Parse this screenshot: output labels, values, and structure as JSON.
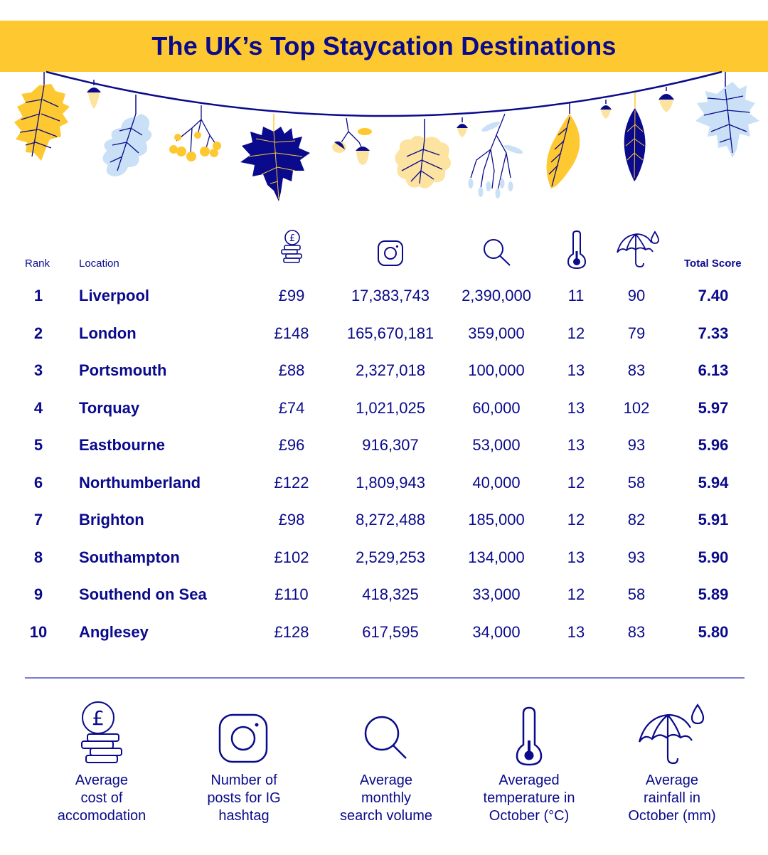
{
  "title": "The UK’s Top Staycation Destinations",
  "colors": {
    "navy": "#0a0a8c",
    "yellow": "#fdc830",
    "light_yellow": "#fde3a0",
    "light_blue": "#c9e0f7",
    "divider": "#7b7bd6"
  },
  "table": {
    "headers": {
      "rank": "Rank",
      "location": "Location",
      "cost_icon": "pound-coins-icon",
      "ig_icon": "instagram-icon",
      "search_icon": "search-icon",
      "temp_icon": "thermometer-icon",
      "rain_icon": "umbrella-rain-icon",
      "total_score": "Total Score"
    },
    "rows": [
      {
        "rank": "1",
        "location": "Liverpool",
        "cost": "£99",
        "ig_posts": "17,383,743",
        "search_volume": "2,390,000",
        "temp": "11",
        "rainfall": "90",
        "score": "7.40"
      },
      {
        "rank": "2",
        "location": "London",
        "cost": "£148",
        "ig_posts": "165,670,181",
        "search_volume": "359,000",
        "temp": "12",
        "rainfall": "79",
        "score": "7.33"
      },
      {
        "rank": "3",
        "location": "Portsmouth",
        "cost": "£88",
        "ig_posts": "2,327,018",
        "search_volume": "100,000",
        "temp": "13",
        "rainfall": "83",
        "score": "6.13"
      },
      {
        "rank": "4",
        "location": "Torquay",
        "cost": "£74",
        "ig_posts": "1,021,025",
        "search_volume": "60,000",
        "temp": "13",
        "rainfall": "102",
        "score": "5.97"
      },
      {
        "rank": "5",
        "location": "Eastbourne",
        "cost": "£96",
        "ig_posts": "916,307",
        "search_volume": "53,000",
        "temp": "13",
        "rainfall": "93",
        "score": "5.96"
      },
      {
        "rank": "6",
        "location": "Northumberland",
        "cost": "£122",
        "ig_posts": "1,809,943",
        "search_volume": "40,000",
        "temp": "12",
        "rainfall": "58",
        "score": "5.94"
      },
      {
        "rank": "7",
        "location": "Brighton",
        "cost": "£98",
        "ig_posts": "8,272,488",
        "search_volume": "185,000",
        "temp": "12",
        "rainfall": "82",
        "score": "5.91"
      },
      {
        "rank": "8",
        "location": "Southampton",
        "cost": "£102",
        "ig_posts": "2,529,253",
        "search_volume": "134,000",
        "temp": "13",
        "rainfall": "93",
        "score": "5.90"
      },
      {
        "rank": "9",
        "location": "Southend on Sea",
        "cost": "£110",
        "ig_posts": "418,325",
        "search_volume": "33,000",
        "temp": "12",
        "rainfall": "58",
        "score": "5.89"
      },
      {
        "rank": "10",
        "location": "Anglesey",
        "cost": "£128",
        "ig_posts": "617,595",
        "search_volume": "34,000",
        "temp": "13",
        "rainfall": "83",
        "score": "5.80"
      }
    ]
  },
  "legend": [
    {
      "icon": "pound-coins-icon",
      "lines": [
        "Average",
        "cost of",
        "accomodation"
      ]
    },
    {
      "icon": "instagram-icon",
      "lines": [
        "Number of",
        "posts for IG",
        "hashtag"
      ]
    },
    {
      "icon": "search-icon",
      "lines": [
        "Average",
        "monthly",
        "search volume"
      ]
    },
    {
      "icon": "thermometer-icon",
      "lines": [
        "Averaged",
        "temperature in",
        "October (°C)"
      ]
    },
    {
      "icon": "umbrella-rain-icon",
      "lines": [
        "Average",
        "rainfall in",
        "October (mm)"
      ]
    }
  ],
  "chart_data": {
    "type": "table",
    "title": "The UK’s Top Staycation Destinations",
    "columns": [
      "Rank",
      "Location",
      "Average cost of accomodation",
      "Number of posts for IG hashtag",
      "Average monthly search volume",
      "Averaged temperature in October (°C)",
      "Average rainfall in October (mm)",
      "Total Score"
    ],
    "rows": [
      [
        1,
        "Liverpool",
        99,
        17383743,
        2390000,
        11,
        90,
        7.4
      ],
      [
        2,
        "London",
        148,
        165670181,
        359000,
        12,
        79,
        7.33
      ],
      [
        3,
        "Portsmouth",
        88,
        2327018,
        100000,
        13,
        83,
        6.13
      ],
      [
        4,
        "Torquay",
        74,
        1021025,
        60000,
        13,
        102,
        5.97
      ],
      [
        5,
        "Eastbourne",
        96,
        916307,
        53000,
        13,
        93,
        5.96
      ],
      [
        6,
        "Northumberland",
        122,
        1809943,
        40000,
        12,
        58,
        5.94
      ],
      [
        7,
        "Brighton",
        98,
        8272488,
        185000,
        12,
        82,
        5.91
      ],
      [
        8,
        "Southampton",
        102,
        2529253,
        134000,
        13,
        93,
        5.9
      ],
      [
        9,
        "Southend on Sea",
        110,
        418325,
        33000,
        12,
        58,
        5.89
      ],
      [
        10,
        "Anglesey",
        128,
        617595,
        34000,
        13,
        83,
        5.8
      ]
    ],
    "units": {
      "cost": "GBP",
      "temperature": "°C",
      "rainfall": "mm"
    }
  }
}
